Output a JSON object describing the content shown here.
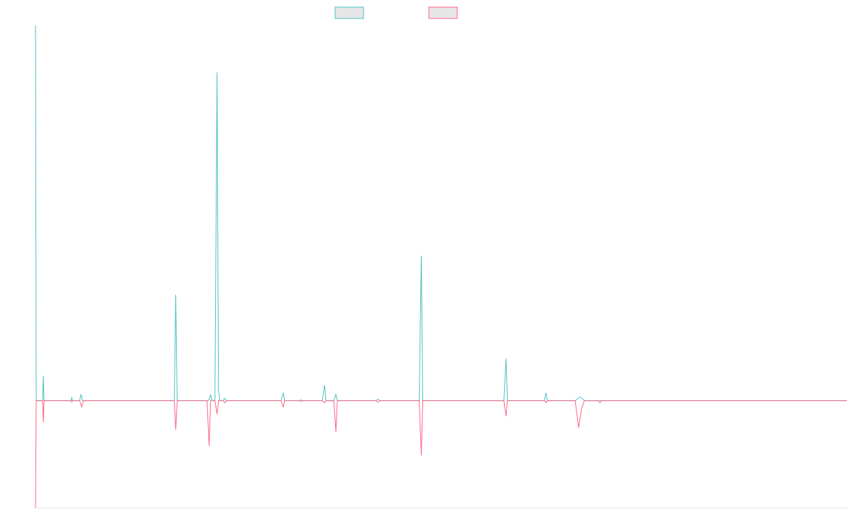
{
  "chart_data": {
    "type": "line",
    "title": "",
    "xlabel": "",
    "ylabel": "",
    "grid": false,
    "legend": "top-center",
    "xlim": [
      0,
      1140
    ],
    "ylim": [
      -151,
      528
    ],
    "colors": {
      "series_a": "#4bc0c0",
      "series_b": "#ff6384",
      "swatch_fill": "#e6e6e6",
      "axis": "#e3e3e3"
    },
    "series": [
      {
        "name": "",
        "color": "#4bc0c0",
        "points": [
          [
            0,
            528
          ],
          [
            1,
            0
          ],
          [
            10,
            0
          ],
          [
            11,
            35
          ],
          [
            12,
            0
          ],
          [
            40,
            0
          ],
          [
            50,
            0
          ],
          [
            51,
            5
          ],
          [
            52,
            0
          ],
          [
            62,
            0
          ],
          [
            64,
            9
          ],
          [
            66,
            0
          ],
          [
            195,
            0
          ],
          [
            197,
            149
          ],
          [
            199,
            0
          ],
          [
            243,
            0
          ],
          [
            246,
            8
          ],
          [
            248,
            0
          ],
          [
            252,
            0
          ],
          [
            255,
            462
          ],
          [
            257,
            15
          ],
          [
            259,
            0
          ],
          [
            263,
            0
          ],
          [
            266,
            3
          ],
          [
            268,
            0
          ],
          [
            345,
            0
          ],
          [
            348,
            11
          ],
          [
            350,
            0
          ],
          [
            370,
            0
          ],
          [
            373,
            1
          ],
          [
            376,
            0
          ],
          [
            403,
            0
          ],
          [
            406,
            22
          ],
          [
            408,
            0
          ],
          [
            419,
            0
          ],
          [
            422,
            9
          ],
          [
            424,
            0
          ],
          [
            478,
            0
          ],
          [
            481,
            2
          ],
          [
            484,
            0
          ],
          [
            539,
            0
          ],
          [
            542,
            204
          ],
          [
            544,
            0
          ],
          [
            658,
            0
          ],
          [
            661,
            59
          ],
          [
            663,
            0
          ],
          [
            715,
            0
          ],
          [
            717,
            11
          ],
          [
            719,
            0
          ],
          [
            758,
            0
          ],
          [
            761,
            2
          ],
          [
            764,
            5
          ],
          [
            768,
            3
          ],
          [
            771,
            0
          ],
          [
            790,
            0
          ],
          [
            793,
            0
          ],
          [
            795,
            0
          ],
          [
            1140,
            0
          ]
        ]
      },
      {
        "name": "",
        "color": "#ff6384",
        "points": [
          [
            0,
            -151
          ],
          [
            1,
            0
          ],
          [
            10,
            0
          ],
          [
            11,
            -31
          ],
          [
            12,
            0
          ],
          [
            40,
            0
          ],
          [
            50,
            0
          ],
          [
            51,
            -2
          ],
          [
            52,
            0
          ],
          [
            62,
            0
          ],
          [
            65,
            -9
          ],
          [
            67,
            0
          ],
          [
            195,
            0
          ],
          [
            197,
            -41
          ],
          [
            199,
            0
          ],
          [
            241,
            0
          ],
          [
            244,
            -64
          ],
          [
            246,
            0
          ],
          [
            252,
            0
          ],
          [
            255,
            -19
          ],
          [
            257,
            0
          ],
          [
            263,
            0
          ],
          [
            266,
            -3
          ],
          [
            268,
            0
          ],
          [
            345,
            0
          ],
          [
            348,
            -9
          ],
          [
            350,
            0
          ],
          [
            370,
            0
          ],
          [
            373,
            -1
          ],
          [
            376,
            0
          ],
          [
            403,
            0
          ],
          [
            406,
            -3
          ],
          [
            408,
            0
          ],
          [
            419,
            0
          ],
          [
            422,
            -44
          ],
          [
            424,
            0
          ],
          [
            478,
            0
          ],
          [
            481,
            -2
          ],
          [
            484,
            0
          ],
          [
            539,
            0
          ],
          [
            542,
            -77
          ],
          [
            544,
            0
          ],
          [
            658,
            0
          ],
          [
            661,
            -22
          ],
          [
            663,
            0
          ],
          [
            715,
            0
          ],
          [
            717,
            -3
          ],
          [
            719,
            0
          ],
          [
            758,
            0
          ],
          [
            763,
            -38
          ],
          [
            767,
            -12
          ],
          [
            771,
            0
          ],
          [
            790,
            0
          ],
          [
            793,
            -3
          ],
          [
            795,
            0
          ],
          [
            1140,
            0
          ]
        ]
      }
    ]
  }
}
